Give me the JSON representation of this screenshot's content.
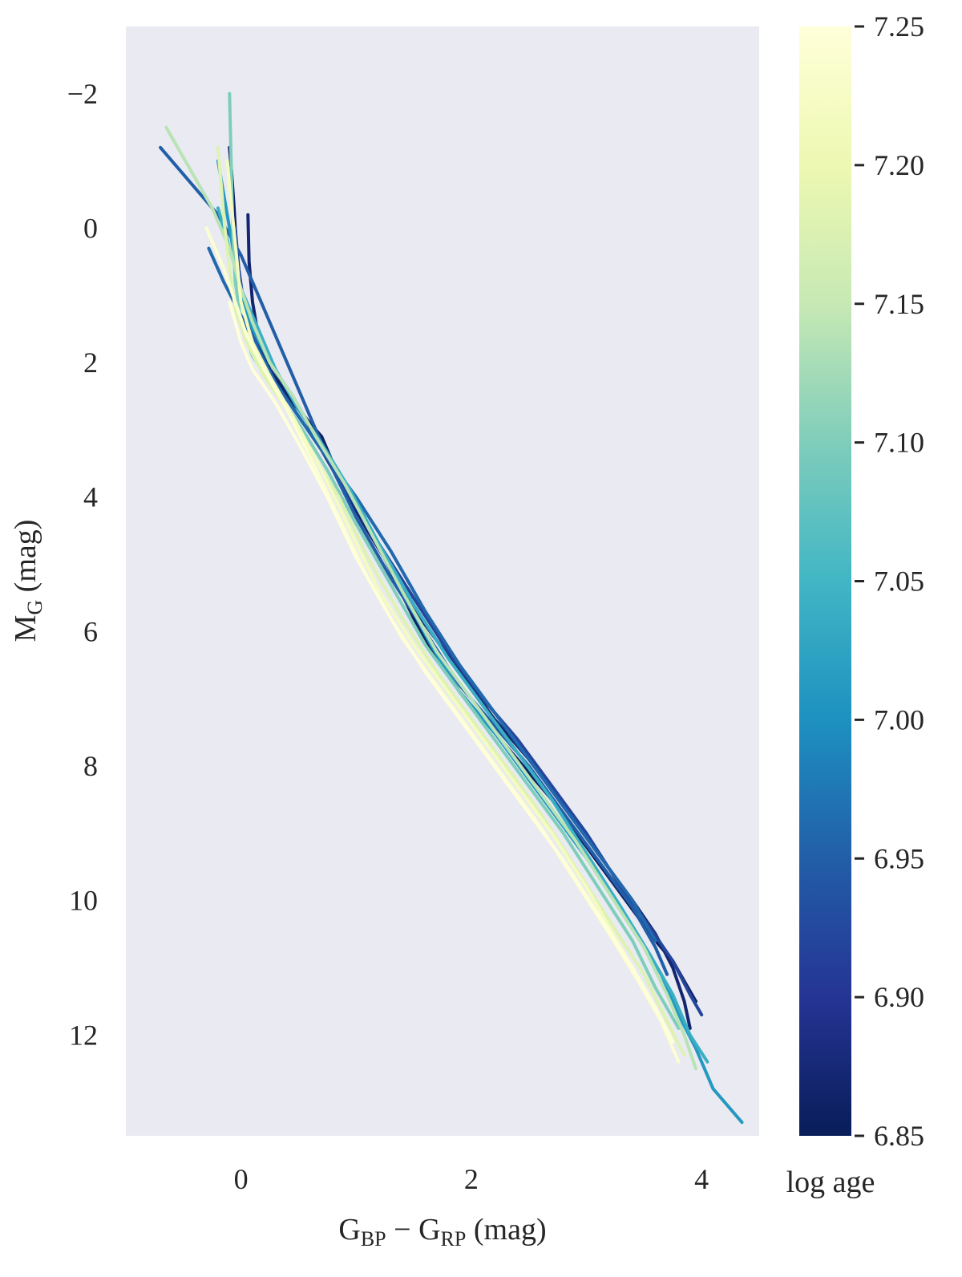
{
  "chart_data": {
    "type": "line",
    "title": "",
    "xlabel": {
      "main1": "G",
      "sub1": "BP",
      "minus": " − ",
      "main2": "G",
      "sub2": "RP",
      "unit": " (mag)"
    },
    "ylabel": {
      "main": "M",
      "sub": "G",
      "unit": " (mag)"
    },
    "xlim": [
      -1.0,
      4.5
    ],
    "ylim": [
      -3.0,
      13.5
    ],
    "y_inverted": true,
    "grid": false,
    "background_color": "#eaeaf2",
    "x_ticks": [
      0,
      2,
      4
    ],
    "x_tick_labels": [
      "0",
      "2",
      "4"
    ],
    "y_ticks": [
      -2,
      0,
      2,
      4,
      6,
      8,
      10,
      12
    ],
    "y_tick_labels": [
      "−2",
      "0",
      "2",
      "4",
      "6",
      "8",
      "10",
      "12"
    ],
    "colorbar": {
      "label": "log age",
      "range": [
        6.85,
        7.25
      ],
      "ticks": [
        6.85,
        6.9,
        6.95,
        7.0,
        7.05,
        7.1,
        7.15,
        7.2,
        7.25
      ],
      "tick_labels": [
        "6.85",
        "6.90",
        "6.95",
        "7.00",
        "7.05",
        "7.10",
        "7.15",
        "7.20",
        "7.25"
      ],
      "colormap": "YlGnBu_r",
      "stops": [
        "#081d58",
        "#253494",
        "#225ea8",
        "#1d91c0",
        "#41b6c4",
        "#7fcdbb",
        "#c7e9b4",
        "#edf8b1",
        "#ffffd9"
      ]
    },
    "series": [
      {
        "log_age": 6.86,
        "x": [
          -0.1,
          -0.08,
          -0.06,
          -0.04,
          0.0,
          0.1,
          0.25,
          0.45,
          0.6,
          0.7,
          0.75,
          0.8,
          0.9,
          1.1,
          1.3,
          1.5,
          1.7,
          1.9,
          2.1,
          2.4,
          2.7,
          3.0,
          3.3,
          3.6,
          3.75,
          3.85,
          3.95
        ],
        "y": [
          -1.2,
          -0.8,
          -0.3,
          0.3,
          0.9,
          1.5,
          2.1,
          2.6,
          2.9,
          3.1,
          3.3,
          3.5,
          3.8,
          4.4,
          5.1,
          5.8,
          6.4,
          6.9,
          7.3,
          7.9,
          8.5,
          9.2,
          9.9,
          10.6,
          10.9,
          11.2,
          11.5
        ]
      },
      {
        "log_age": 6.87,
        "x": [
          0.06,
          0.07,
          0.1,
          0.15,
          0.25,
          0.4,
          0.55,
          0.7,
          0.9,
          1.1,
          1.35,
          1.6,
          1.9,
          2.2,
          2.5,
          2.8,
          3.1,
          3.4,
          3.6,
          3.75,
          3.85,
          3.9
        ],
        "y": [
          -0.2,
          0.5,
          1.1,
          1.6,
          2.0,
          2.4,
          2.8,
          3.3,
          3.9,
          4.5,
          5.2,
          5.9,
          6.6,
          7.3,
          7.9,
          8.6,
          9.3,
          10.0,
          10.5,
          11.0,
          11.5,
          11.9
        ]
      },
      {
        "log_age": 6.92,
        "x": [
          -0.05,
          -0.02,
          0.03,
          0.15,
          0.3,
          0.5,
          0.7,
          0.95,
          1.2,
          1.5,
          1.8,
          2.1,
          2.4,
          2.7,
          3.0,
          3.3,
          3.55,
          3.75,
          3.9,
          4.0
        ],
        "y": [
          0.0,
          0.6,
          1.2,
          1.8,
          2.3,
          2.8,
          3.3,
          4.0,
          4.7,
          5.5,
          6.3,
          7.0,
          7.6,
          8.3,
          9.0,
          9.8,
          10.4,
          10.9,
          11.4,
          11.7
        ]
      },
      {
        "log_age": 6.95,
        "x": [
          -0.7,
          -0.45,
          -0.2,
          0.0,
          0.15,
          0.3,
          0.45,
          0.55,
          0.65,
          0.8,
          1.0,
          1.3,
          1.6,
          1.9,
          2.2,
          2.5,
          2.8,
          3.1,
          3.4,
          3.6,
          3.7
        ],
        "y": [
          -1.2,
          -0.7,
          -0.2,
          0.4,
          1.0,
          1.6,
          2.2,
          2.6,
          3.0,
          3.6,
          4.3,
          5.2,
          6.0,
          6.8,
          7.4,
          8.0,
          8.7,
          9.4,
          10.1,
          10.7,
          11.1
        ]
      },
      {
        "log_age": 6.96,
        "x": [
          -0.28,
          -0.15,
          0.0,
          0.15,
          0.3,
          0.5,
          0.7,
          1.0,
          1.3,
          1.6,
          1.9,
          2.2,
          2.5,
          2.8,
          3.1,
          3.4,
          3.6
        ],
        "y": [
          0.3,
          0.8,
          1.3,
          1.8,
          2.3,
          2.8,
          3.3,
          4.0,
          4.8,
          5.7,
          6.5,
          7.2,
          7.9,
          8.6,
          9.3,
          10.0,
          10.6
        ]
      },
      {
        "log_age": 7.01,
        "x": [
          -0.2,
          -0.15,
          -0.1,
          -0.05,
          0.0,
          0.1,
          0.25,
          0.45,
          0.65,
          0.9,
          1.15,
          1.4,
          1.65,
          1.9,
          2.2,
          2.5,
          2.8,
          3.1,
          3.4,
          3.65,
          3.8,
          3.95,
          4.1,
          4.35
        ],
        "y": [
          -1.0,
          -0.5,
          0.0,
          0.5,
          1.0,
          1.5,
          2.0,
          2.5,
          3.1,
          3.8,
          4.6,
          5.4,
          6.2,
          6.9,
          7.5,
          8.2,
          8.9,
          9.6,
          10.4,
          11.1,
          11.7,
          12.2,
          12.8,
          13.3
        ]
      },
      {
        "log_age": 7.04,
        "x": [
          -0.2,
          -0.1,
          0.0,
          0.15,
          0.3,
          0.5,
          0.7,
          0.95,
          1.2,
          1.5,
          1.8,
          2.1,
          2.4,
          2.7,
          3.0,
          3.3,
          3.55,
          3.75,
          3.9,
          4.05
        ],
        "y": [
          -0.3,
          0.3,
          0.9,
          1.5,
          2.1,
          2.7,
          3.2,
          3.9,
          4.7,
          5.6,
          6.4,
          7.1,
          7.8,
          8.5,
          9.3,
          10.1,
          10.8,
          11.4,
          12.0,
          12.4
        ]
      },
      {
        "log_age": 7.1,
        "x": [
          -0.1,
          -0.09,
          -0.08,
          -0.07,
          -0.05,
          0.0,
          0.1,
          0.3,
          0.5,
          0.75,
          1.0,
          1.3,
          1.6,
          1.9,
          2.2,
          2.5,
          2.8,
          3.1,
          3.4,
          3.6,
          3.8
        ],
        "y": [
          -2.0,
          -1.3,
          -0.6,
          0.1,
          0.8,
          1.4,
          1.9,
          2.4,
          2.9,
          3.6,
          4.4,
          5.3,
          6.2,
          6.9,
          7.6,
          8.3,
          9.0,
          9.8,
          10.6,
          11.3,
          11.9
        ]
      },
      {
        "log_age": 7.14,
        "x": [
          -0.65,
          -0.45,
          -0.25,
          -0.1,
          0.0,
          0.1,
          0.25,
          0.45,
          0.65,
          0.9,
          1.15,
          1.4,
          1.7,
          2.0,
          2.3,
          2.6,
          2.9,
          3.2,
          3.5,
          3.7,
          3.85,
          3.95
        ],
        "y": [
          -1.5,
          -0.9,
          -0.3,
          0.3,
          0.9,
          1.4,
          2.0,
          2.5,
          3.1,
          3.8,
          4.6,
          5.4,
          6.3,
          7.0,
          7.7,
          8.4,
          9.1,
          9.9,
          10.7,
          11.4,
          12.0,
          12.5
        ]
      },
      {
        "log_age": 7.18,
        "x": [
          -0.2,
          -0.17,
          -0.14,
          -0.1,
          -0.05,
          0.05,
          0.2,
          0.4,
          0.6,
          0.85,
          1.1,
          1.4,
          1.7,
          2.0,
          2.3,
          2.6,
          2.9,
          3.2,
          3.5,
          3.7,
          3.85
        ],
        "y": [
          -1.2,
          -0.6,
          0.0,
          0.6,
          1.2,
          1.7,
          2.2,
          2.7,
          3.3,
          4.0,
          4.9,
          5.8,
          6.6,
          7.3,
          8.0,
          8.7,
          9.5,
          10.3,
          11.1,
          11.8,
          12.3
        ]
      },
      {
        "log_age": 7.22,
        "x": [
          -0.12,
          -0.08,
          -0.04,
          0.0,
          0.1,
          0.25,
          0.45,
          0.7,
          0.95,
          1.2,
          1.5,
          1.8,
          2.1,
          2.4,
          2.7,
          3.0,
          3.3,
          3.55,
          3.75
        ],
        "y": [
          -1.0,
          -0.3,
          0.4,
          1.1,
          1.7,
          2.2,
          2.8,
          3.6,
          4.5,
          5.4,
          6.2,
          6.9,
          7.6,
          8.3,
          9.0,
          9.8,
          10.7,
          11.5,
          12.1
        ]
      },
      {
        "log_age": 7.24,
        "x": [
          -0.3,
          -0.15,
          -0.05,
          0.05,
          0.2,
          0.4,
          0.6,
          0.85,
          1.1,
          1.4,
          1.7,
          2.0,
          2.3,
          2.6,
          2.9,
          3.2,
          3.45,
          3.65,
          3.8
        ],
        "y": [
          0.0,
          0.6,
          1.1,
          1.6,
          2.1,
          2.7,
          3.4,
          4.3,
          5.2,
          6.1,
          6.8,
          7.5,
          8.2,
          8.9,
          9.7,
          10.5,
          11.2,
          11.8,
          12.4
        ]
      },
      {
        "log_age": 7.25,
        "x": [
          -0.1,
          -0.05,
          0.0,
          0.1,
          0.3,
          0.5,
          0.75,
          1.0,
          1.3,
          1.6,
          1.9,
          2.2,
          2.5,
          2.8,
          3.1,
          3.4,
          3.6,
          3.75
        ],
        "y": [
          1.1,
          1.4,
          1.7,
          2.1,
          2.6,
          3.2,
          4.0,
          4.9,
          5.8,
          6.6,
          7.3,
          8.0,
          8.7,
          9.4,
          10.2,
          11.0,
          11.6,
          12.1
        ]
      }
    ]
  }
}
